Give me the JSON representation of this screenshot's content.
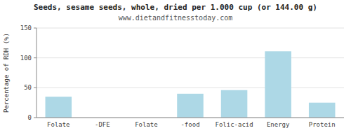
{
  "chart_data": {
    "type": "bar",
    "title": "Seeds, sesame seeds, whole, dried per 1.000 cup (or 144.00 g)",
    "subtitle": "www.dietandfitnesstoday.com",
    "categories": [
      "Folate",
      "-DFE",
      "Folate",
      "-food",
      "Folic-acid",
      "Energy",
      "Protein"
    ],
    "values": [
      35,
      0,
      0,
      40,
      46,
      111,
      25
    ],
    "color": "#add8e6",
    "ylabel": "Percentage of RDH (%)",
    "ylim": [
      0,
      150
    ],
    "yticks": [
      0,
      50,
      100,
      150
    ],
    "grid": true
  }
}
